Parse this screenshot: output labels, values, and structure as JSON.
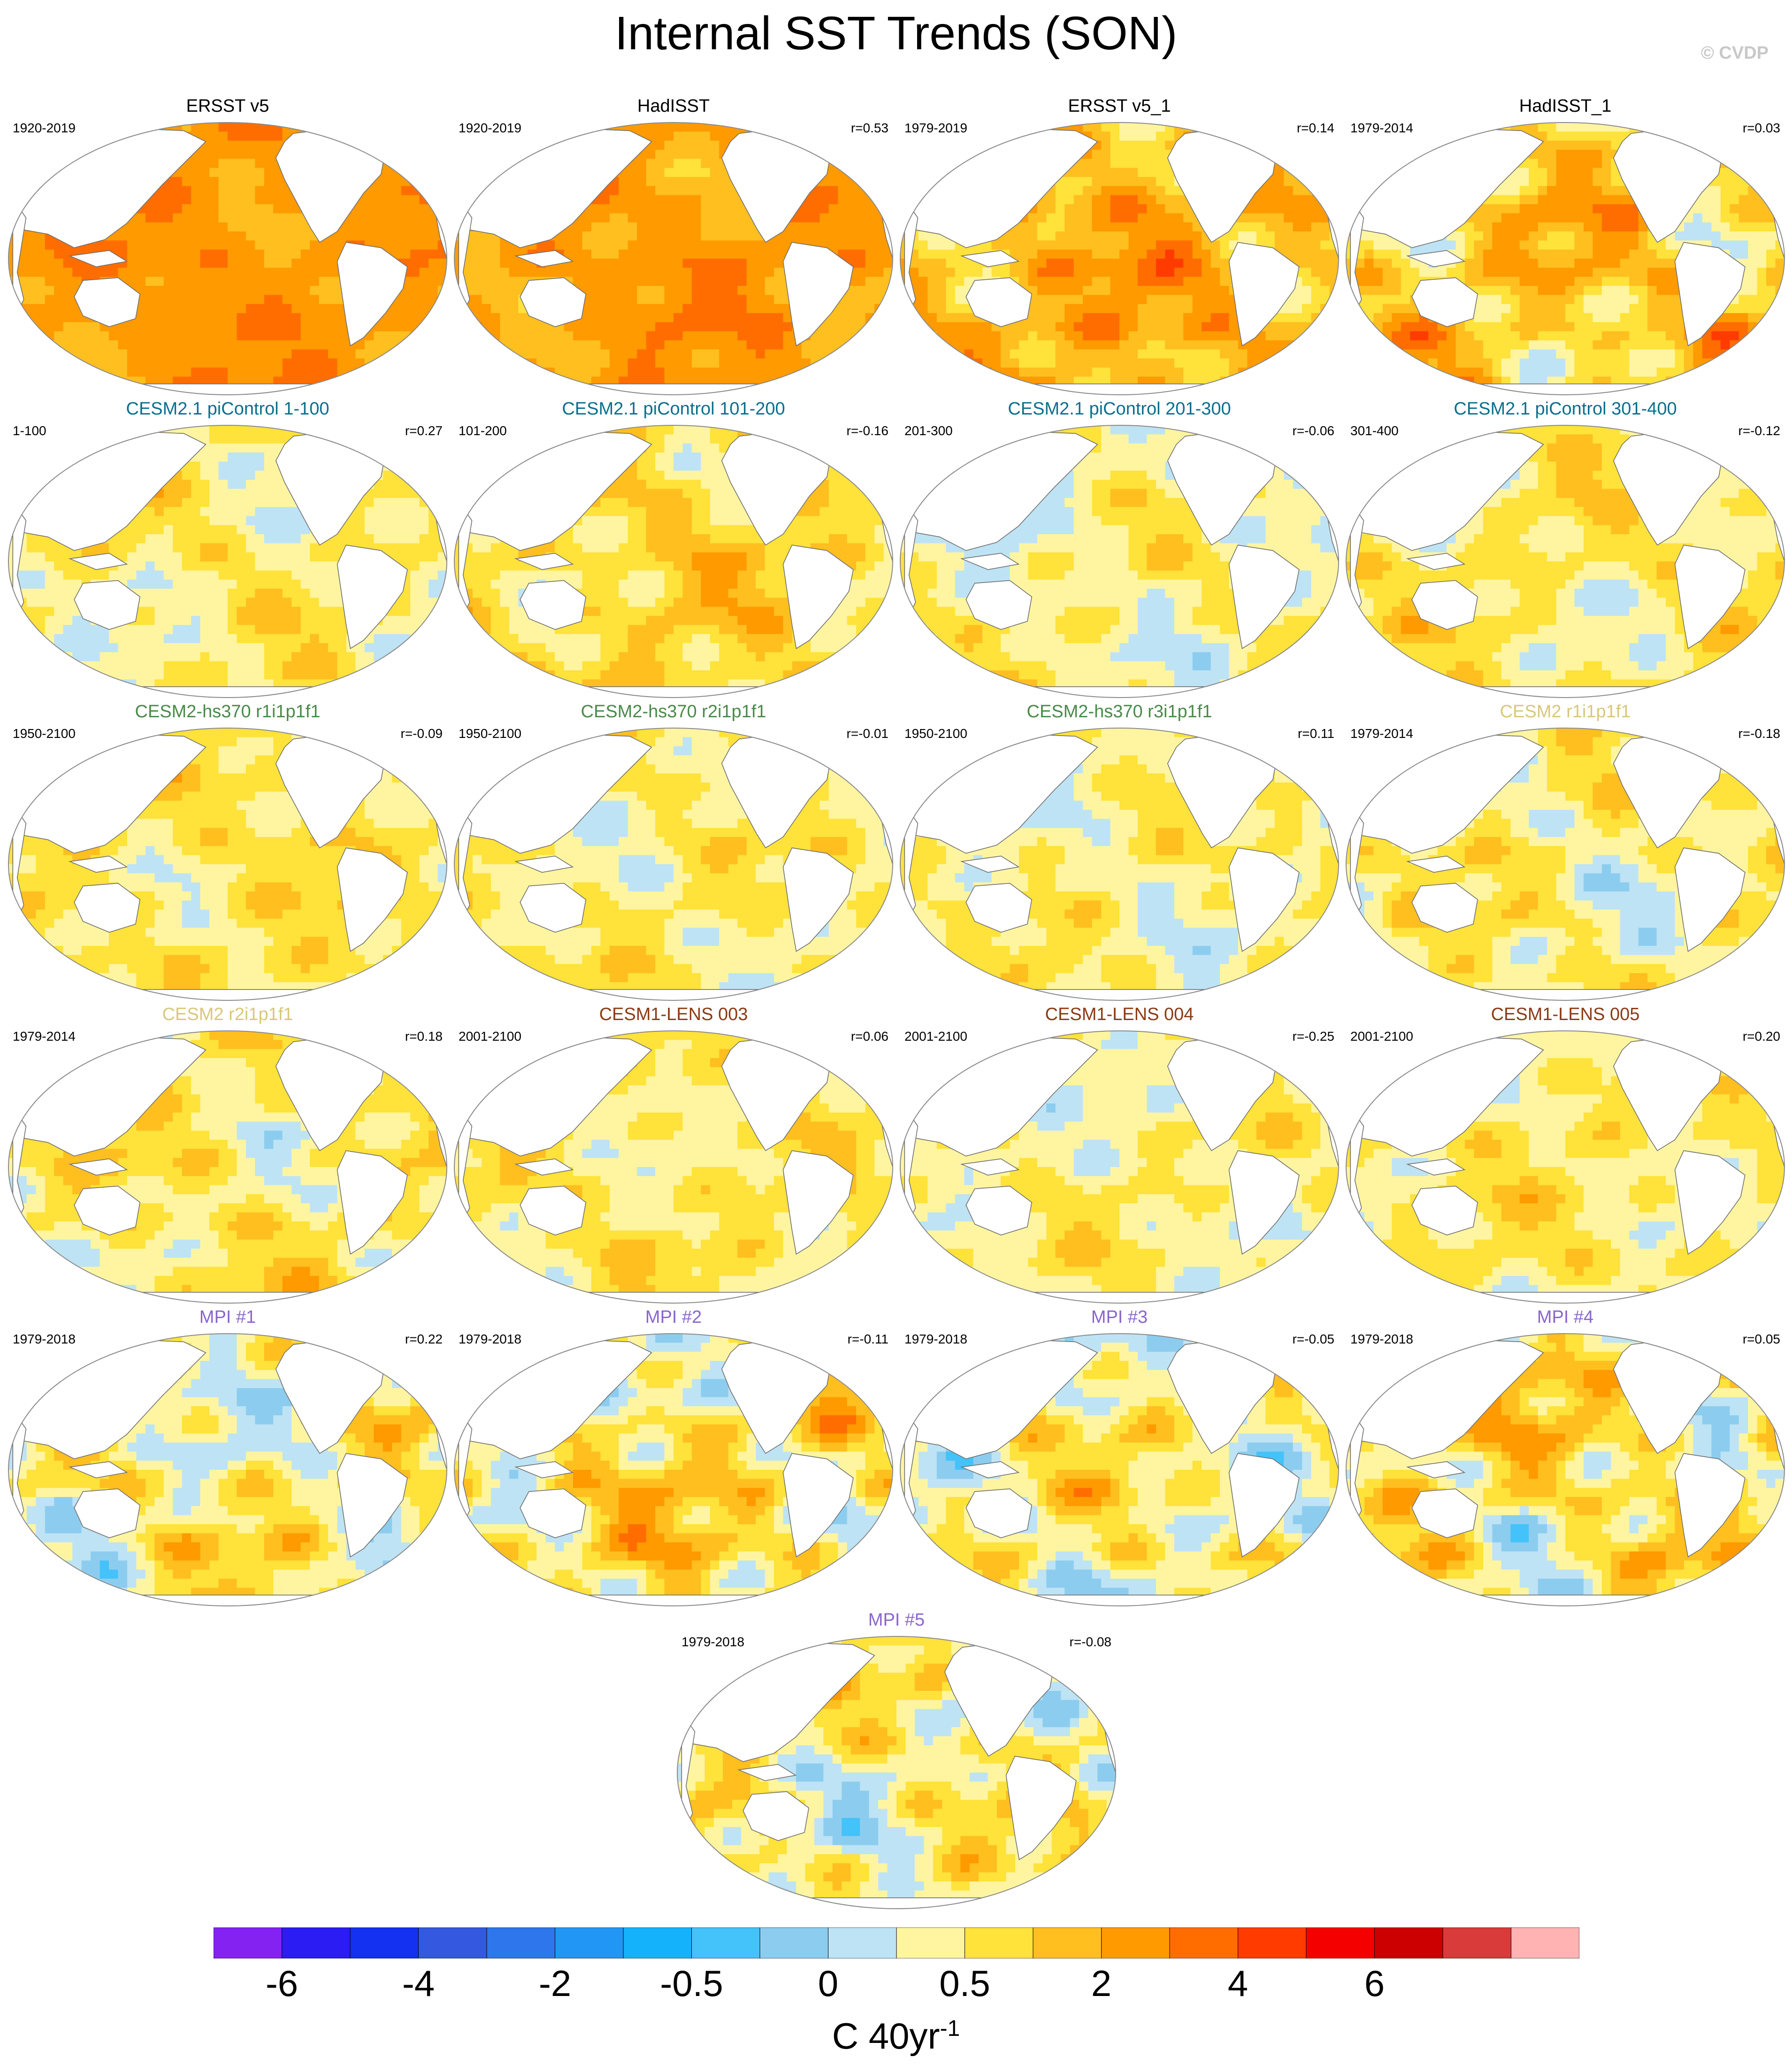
{
  "title": "Internal SST Trends (SON)",
  "copyright": "© CVDP",
  "colors": {
    "obs": "#000000",
    "cesm21_picontrol": "#0b6f8c",
    "cesm2_hs370": "#4a8a4a",
    "cesm2": "#d9c77c",
    "cesm1_lens": "#8b3a14",
    "mpi": "#8a66cc"
  },
  "panels": [
    {
      "title": "ERSST v5",
      "period": "1920-2019",
      "corr": "",
      "group": "obs",
      "pattern": {
        "base": 3,
        "var": 0.35,
        "seed": 11
      }
    },
    {
      "title": "HadISST",
      "period": "1920-2019",
      "corr": "r=0.53",
      "group": "obs",
      "pattern": {
        "base": 2.9,
        "var": 0.45,
        "seed": 12
      }
    },
    {
      "title": "ERSST v5_1",
      "period": "1979-2019",
      "corr": "r=0.14",
      "group": "obs",
      "pattern": {
        "base": 2.3,
        "var": 0.7,
        "seed": 13
      }
    },
    {
      "title": "HadISST_1",
      "period": "1979-2014",
      "corr": "r=0.03",
      "group": "obs",
      "pattern": {
        "base": 1.6,
        "var": 0.85,
        "seed": 14
      }
    },
    {
      "title": "CESM2.1 piControl 1-100",
      "period": "1-100",
      "corr": "r=0.27",
      "group": "cesm21_picontrol",
      "pattern": {
        "base": 0.45,
        "var": 0.55,
        "seed": 21
      }
    },
    {
      "title": "CESM2.1 piControl 101-200",
      "period": "101-200",
      "corr": "r=-0.16",
      "group": "cesm21_picontrol",
      "pattern": {
        "base": 1.2,
        "var": 0.6,
        "seed": 22
      }
    },
    {
      "title": "CESM2.1 piControl 201-300",
      "period": "201-300",
      "corr": "r=-0.06",
      "group": "cesm21_picontrol",
      "pattern": {
        "base": 0.15,
        "var": 0.55,
        "seed": 23
      }
    },
    {
      "title": "CESM2.1 piControl 301-400",
      "period": "301-400",
      "corr": "r=-0.12",
      "group": "cesm21_picontrol",
      "pattern": {
        "base": 0.55,
        "var": 0.55,
        "seed": 24
      }
    },
    {
      "title": "CESM2-hs370 r1i1p1f1",
      "period": "1950-2100",
      "corr": "r=-0.09",
      "group": "cesm2_hs370",
      "pattern": {
        "base": 0.75,
        "var": 0.5,
        "seed": 31
      }
    },
    {
      "title": "CESM2-hs370 r2i1p1f1",
      "period": "1950-2100",
      "corr": "r=-0.01",
      "group": "cesm2_hs370",
      "pattern": {
        "base": 0.45,
        "var": 0.5,
        "seed": 32
      }
    },
    {
      "title": "CESM2-hs370 r3i1p1f1",
      "period": "1950-2100",
      "corr": "r=0.11",
      "group": "cesm2_hs370",
      "pattern": {
        "base": 0.25,
        "var": 0.5,
        "seed": 33
      }
    },
    {
      "title": "CESM2 r1i1p1f1",
      "period": "1979-2014",
      "corr": "r=-0.18",
      "group": "cesm2",
      "pattern": {
        "base": 0.35,
        "var": 0.65,
        "seed": 34
      }
    },
    {
      "title": "CESM2 r2i1p1f1",
      "period": "1979-2014",
      "corr": "r=0.18",
      "group": "cesm2",
      "pattern": {
        "base": 0.6,
        "var": 0.6,
        "seed": 35
      }
    },
    {
      "title": "CESM1-LENS 003",
      "period": "2001-2100",
      "corr": "r=0.06",
      "group": "cesm1_lens",
      "pattern": {
        "base": 0.65,
        "var": 0.5,
        "seed": 41
      }
    },
    {
      "title": "CESM1-LENS 004",
      "period": "2001-2100",
      "corr": "r=-0.25",
      "group": "cesm1_lens",
      "pattern": {
        "base": 0.3,
        "var": 0.5,
        "seed": 42
      }
    },
    {
      "title": "CESM1-LENS 005",
      "period": "2001-2100",
      "corr": "r=0.20",
      "group": "cesm1_lens",
      "pattern": {
        "base": 0.55,
        "var": 0.5,
        "seed": 43
      }
    },
    {
      "title": "MPI #1",
      "period": "1979-2018",
      "corr": "r=0.22",
      "group": "mpi",
      "pattern": {
        "base": 0.35,
        "var": 0.85,
        "seed": 51
      }
    },
    {
      "title": "MPI #2",
      "period": "1979-2018",
      "corr": "r=-0.11",
      "group": "mpi",
      "pattern": {
        "base": 0.95,
        "var": 0.95,
        "seed": 52
      }
    },
    {
      "title": "MPI #3",
      "period": "1979-2018",
      "corr": "r=-0.05",
      "group": "mpi",
      "pattern": {
        "base": 0.3,
        "var": 0.85,
        "seed": 53
      }
    },
    {
      "title": "MPI #4",
      "period": "1979-2018",
      "corr": "r=0.05",
      "group": "mpi",
      "pattern": {
        "base": 0.85,
        "var": 0.95,
        "seed": 54
      }
    },
    {
      "title": "MPI #5",
      "period": "1979-2018",
      "corr": "r=-0.08",
      "group": "mpi",
      "pattern": {
        "base": 0.35,
        "var": 0.85,
        "seed": 55
      }
    }
  ],
  "chart_data": {
    "type": "heatmap",
    "title": "Internal SST Trends (SON)",
    "units": "C 40yr",
    "units_exponent": "-1",
    "colorbar": {
      "tick_labels": [
        "-6",
        "-4",
        "-2",
        "-0.5",
        "0",
        "0.5",
        "2",
        "4",
        "6"
      ],
      "tick_boundaries": [
        1,
        3,
        5,
        7,
        9,
        11,
        13,
        15,
        17
      ],
      "colors": [
        "#8422f2",
        "#2a1cf2",
        "#1430f0",
        "#3458df",
        "#2e76ec",
        "#2196f5",
        "#14b2fa",
        "#44c2fa",
        "#8ccdef",
        "#bee3f4",
        "#fff5a0",
        "#ffe23a",
        "#ffbf1f",
        "#ff9a00",
        "#ff6d00",
        "#ff3b00",
        "#f50000",
        "#cc0000",
        "#d93a3a",
        "#ffb3b3"
      ]
    }
  }
}
